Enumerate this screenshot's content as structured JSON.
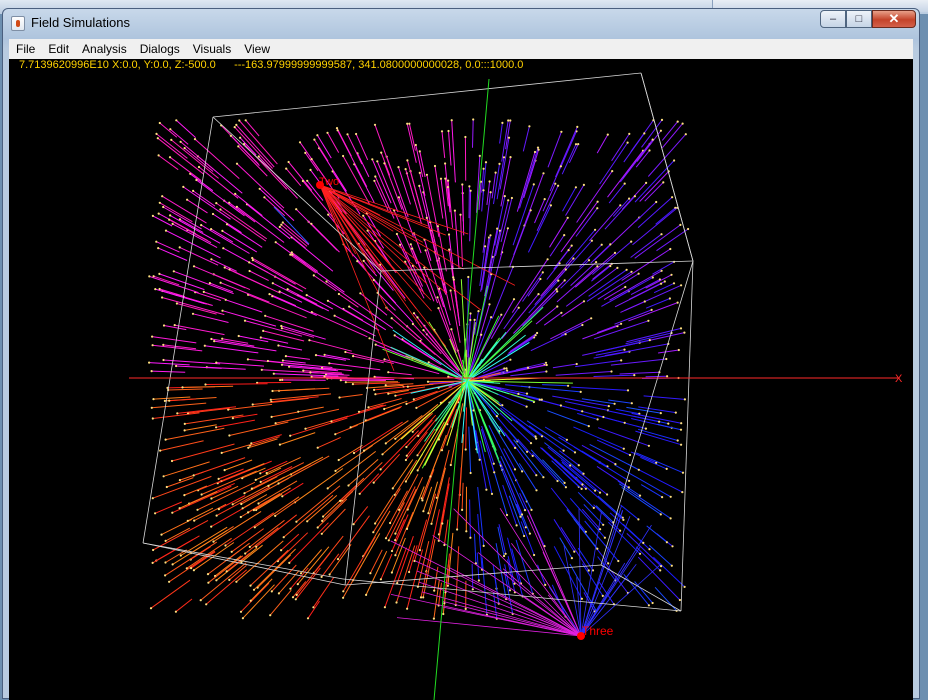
{
  "window": {
    "title": "Field Simulations",
    "controls": {
      "minimize": "–",
      "maximize": "□",
      "close": "✕"
    }
  },
  "menubar": [
    "File",
    "Edit",
    "Analysis",
    "Dialogs",
    "Visuals",
    "View"
  ],
  "readout": "7.7139620996E10 X:0.0, Y:0.0, Z:-500.0      ---163.97999999999587, 341.0800000000028, 0.0:::1000.0",
  "canvas": {
    "axes": {
      "x_label": "X"
    },
    "charges": [
      {
        "name": "Two",
        "color": "#ff0000"
      },
      {
        "name": "Three",
        "color": "#ff0000"
      }
    ],
    "colors": {
      "background": "#000000",
      "box": "#d8d8d8",
      "x_axis": "#ff2a2a",
      "y_axis": "#22dd22",
      "z_axis": "#3355ff",
      "readout": "#ffd200",
      "field_red": "#ff2020",
      "field_magenta": "#e020e0",
      "field_blue": "#3030ff"
    }
  }
}
